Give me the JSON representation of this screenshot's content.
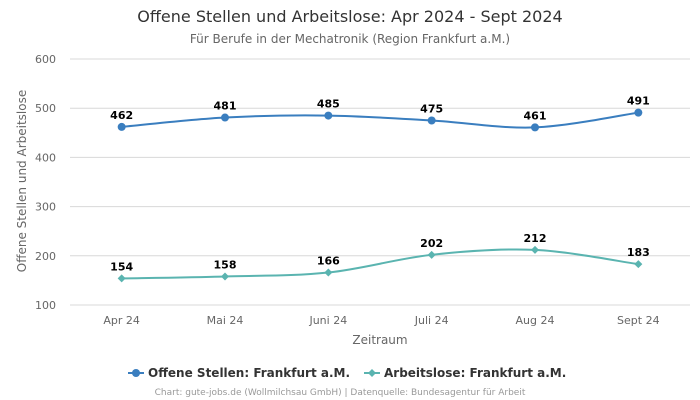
{
  "chart_data": {
    "type": "line",
    "title": "Offene Stellen und Arbeitslose: Apr 2024 - Sept 2024",
    "subtitle": "Für Berufe in der Mechatronik (Region Frankfurt a.M.)",
    "xlabel": "Zeitraum",
    "ylabel": "Offene Stellen und Arbeitslose",
    "categories": [
      "Apr 24",
      "Mai 24",
      "Juni 24",
      "Juli 24",
      "Aug 24",
      "Sept 24"
    ],
    "ylim": [
      100,
      600
    ],
    "yticks": [
      100,
      200,
      300,
      400,
      500,
      600
    ],
    "grid": true,
    "legend_position": "bottom",
    "series": [
      {
        "name": "Offene Stellen: Frankfurt a.M.",
        "values": [
          462,
          481,
          485,
          475,
          461,
          491
        ],
        "color": "#3a7ebf",
        "marker": "circle"
      },
      {
        "name": "Arbeitslose: Frankfurt a.M.",
        "values": [
          154,
          158,
          166,
          202,
          212,
          183
        ],
        "color": "#5ab4b0",
        "marker": "diamond"
      }
    ],
    "credits": "Chart: gute-jobs.de (Wollmilchsau GmbH) | Datenquelle: Bundesagentur für Arbeit"
  }
}
